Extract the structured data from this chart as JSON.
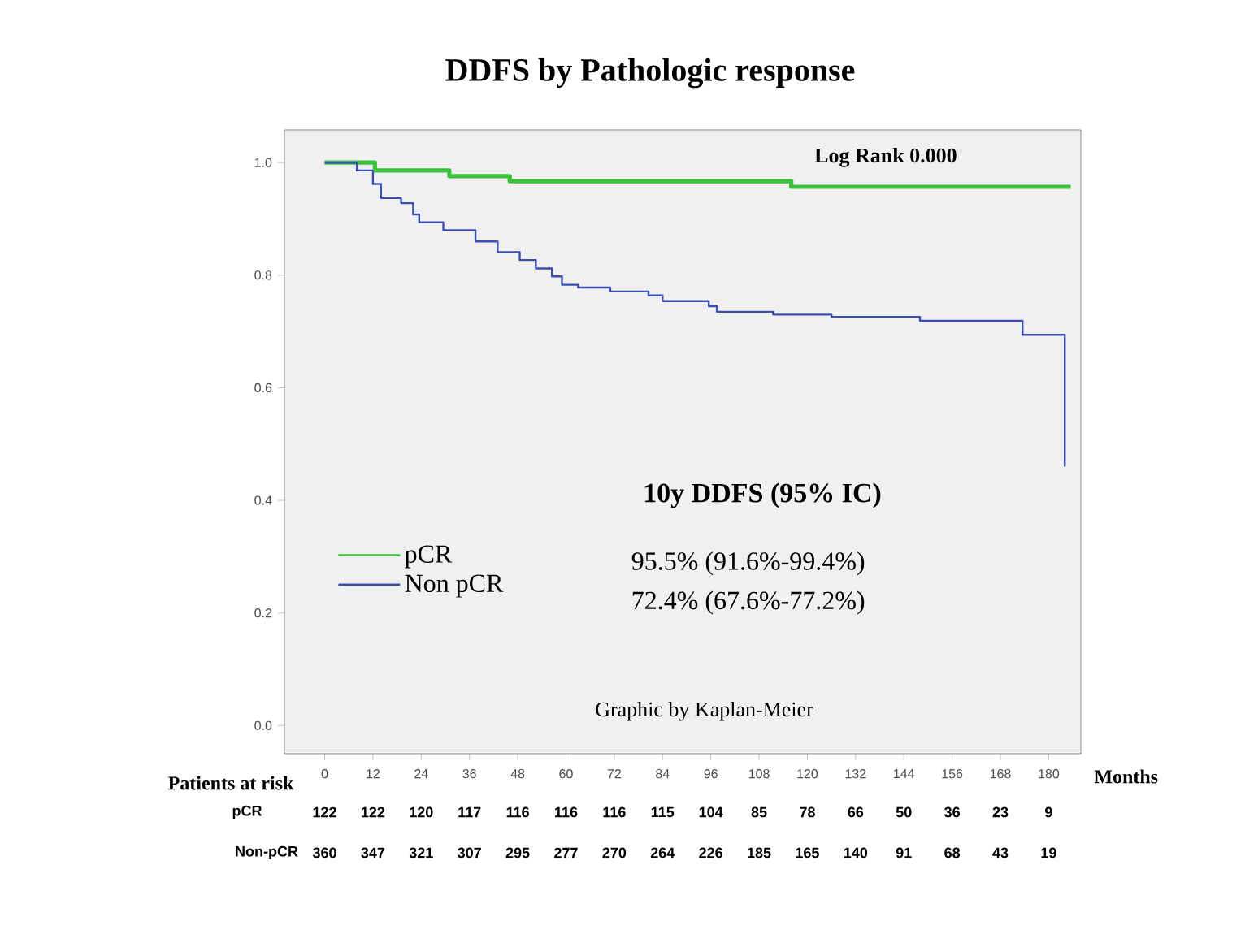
{
  "chart_data": {
    "type": "step",
    "title": "DDFS by Pathologic response",
    "xlabel": "Months",
    "xlim": [
      -10,
      188
    ],
    "ylim": [
      -0.05,
      1.058
    ],
    "xticks": [
      0,
      12,
      24,
      36,
      48,
      60,
      72,
      84,
      96,
      108,
      120,
      132,
      144,
      156,
      168,
      180
    ],
    "yticks": [
      {
        "value": 0,
        "label": "0.0"
      },
      {
        "value": 0.2,
        "label": "0.2"
      },
      {
        "value": 0.4,
        "label": "0.4"
      },
      {
        "value": 0.6,
        "label": "0.6"
      },
      {
        "value": 0.8,
        "label": "0.8"
      },
      {
        "value": 1,
        "label": "1.0"
      }
    ],
    "legend": "left",
    "grid": false,
    "series": [
      {
        "name": "pCR",
        "color": "#3cc13c",
        "x": [
          0,
          12.5,
          31,
          46,
          116,
          185.5
        ],
        "values": [
          1,
          0.986,
          0.976,
          0.967,
          0.957,
          0.957
        ]
      },
      {
        "name": "Non pCR",
        "color": "#3b4fb0",
        "x": [
          0,
          8,
          12,
          14,
          19,
          22,
          23.5,
          29.5,
          37.5,
          43,
          48.5,
          52.5,
          56.5,
          59,
          63,
          71,
          80.5,
          84,
          95.5,
          97.5,
          111.5,
          126,
          148,
          173.5,
          184
        ],
        "values": [
          1,
          0.986,
          0.962,
          0.937,
          0.928,
          0.908,
          0.894,
          0.88,
          0.86,
          0.841,
          0.827,
          0.812,
          0.798,
          0.783,
          0.778,
          0.771,
          0.764,
          0.754,
          0.745,
          0.735,
          0.73,
          0.726,
          0.719,
          0.694,
          0.46
        ]
      }
    ],
    "annotations": [
      "Log Rank 0.000",
      "10y DDFS (95% IC)",
      "95.5%  (91.6%-99.4%)",
      "72.4%  (67.6%-77.2%)",
      "Graphic by Kaplan-Meier",
      "Patients at risk",
      "pCR",
      "Non-pCR",
      "122",
      "122",
      "120",
      "117",
      "116",
      "116",
      "116",
      "115",
      "104",
      "85",
      "78",
      "66",
      "50",
      "36",
      "23",
      "9",
      "360",
      "347",
      "321",
      "307",
      "295",
      "277",
      "270",
      "264",
      "226",
      "185",
      "165",
      "140",
      "91",
      "68",
      "43",
      "19"
    ]
  }
}
